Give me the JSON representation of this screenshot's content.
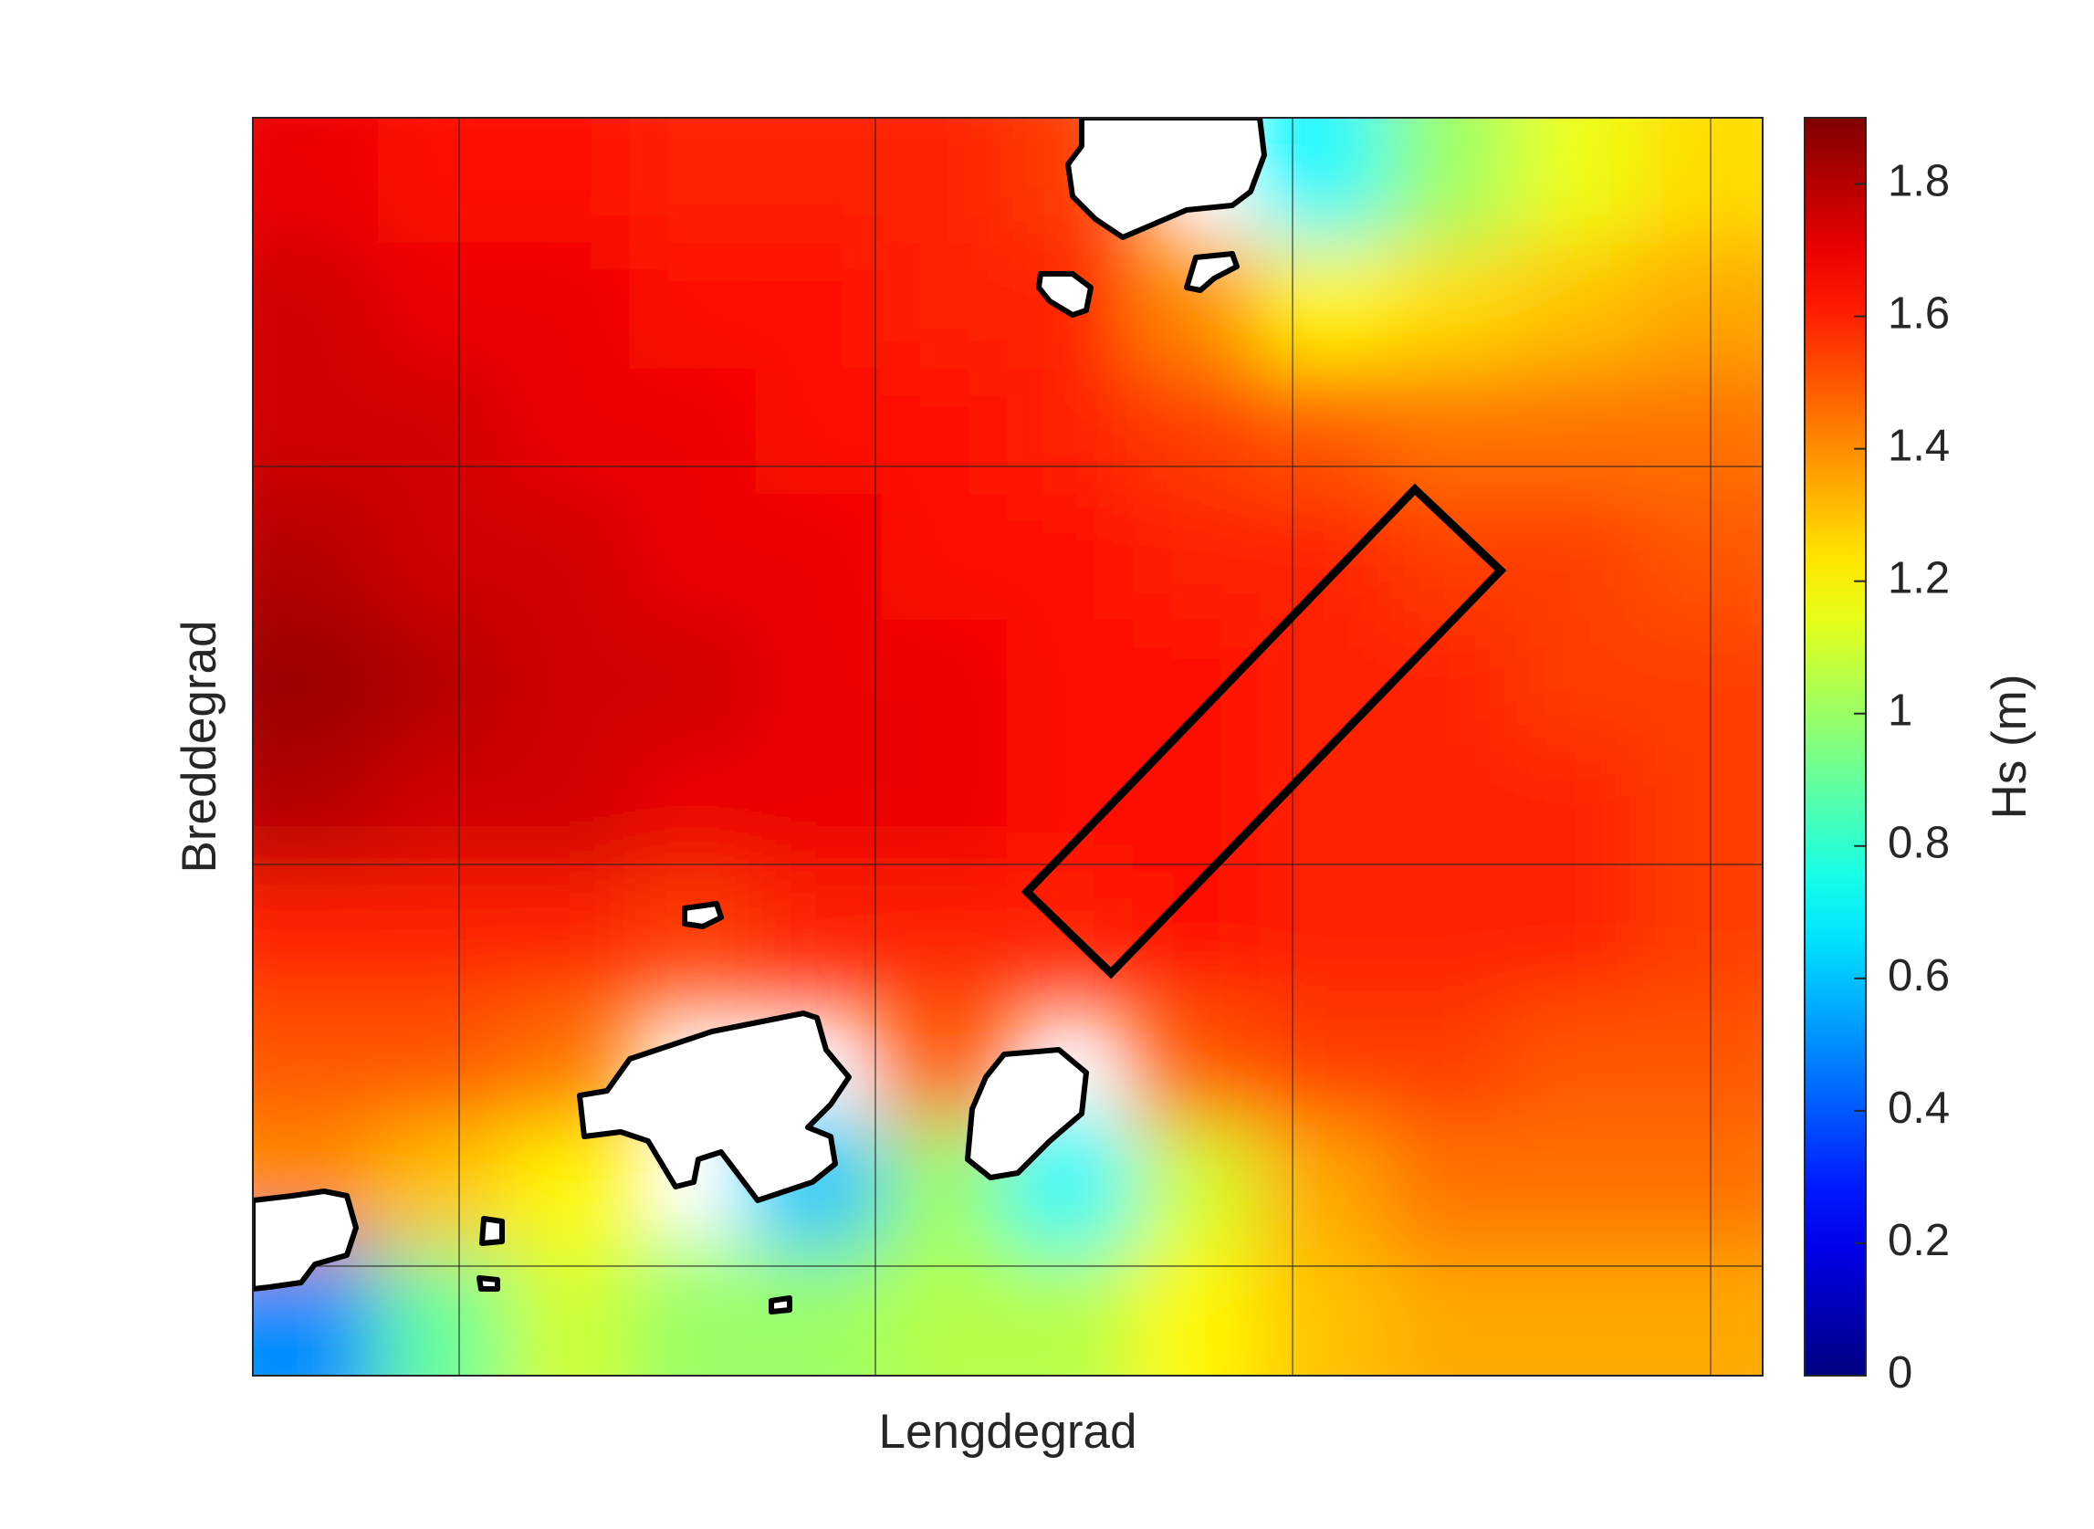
{
  "chart_data": {
    "type": "heatmap",
    "xlabel": "Lengdegrad",
    "ylabel": "Breddegrad",
    "colorbar_label": "Hs (m)",
    "colormap": "jet",
    "clim": [
      0,
      1.9
    ],
    "cticks": [
      0,
      0.2,
      0.4,
      0.6,
      0.8,
      1,
      1.2,
      1.4,
      1.6,
      1.8
    ],
    "z": [
      [
        1.7,
        1.65,
        1.65,
        1.6,
        1.6,
        1.6,
        1.55,
        null,
        0.7,
        1.0,
        1.15,
        1.25
      ],
      [
        1.75,
        1.7,
        1.7,
        1.65,
        1.65,
        1.6,
        1.6,
        1.4,
        1.2,
        1.25,
        1.3,
        1.35
      ],
      [
        1.75,
        1.75,
        1.7,
        1.7,
        1.65,
        1.65,
        1.6,
        1.55,
        1.5,
        1.45,
        1.45,
        1.45
      ],
      [
        1.8,
        1.75,
        1.75,
        1.7,
        1.7,
        1.65,
        1.65,
        1.6,
        1.6,
        1.55,
        1.55,
        1.5
      ],
      [
        1.85,
        1.8,
        1.75,
        1.75,
        1.7,
        1.7,
        1.65,
        1.65,
        1.6,
        1.6,
        1.55,
        1.55
      ],
      [
        1.8,
        1.75,
        1.75,
        1.7,
        1.7,
        1.7,
        1.65,
        1.65,
        1.6,
        1.6,
        1.6,
        1.55
      ],
      [
        1.6,
        1.6,
        1.6,
        1.55,
        1.6,
        1.6,
        1.6,
        1.65,
        1.6,
        1.6,
        1.6,
        1.55
      ],
      [
        1.5,
        1.5,
        1.45,
        null,
        null,
        1.5,
        null,
        1.5,
        1.55,
        1.55,
        1.5,
        1.5
      ],
      [
        1.4,
        1.3,
        1.2,
        null,
        0.6,
        1.0,
        0.7,
        1.1,
        1.35,
        1.45,
        1.45,
        1.45
      ],
      [
        0.5,
        0.9,
        1.1,
        1.0,
        1.0,
        1.05,
        1.05,
        1.2,
        1.3,
        1.35,
        1.35,
        1.35
      ]
    ]
  }
}
